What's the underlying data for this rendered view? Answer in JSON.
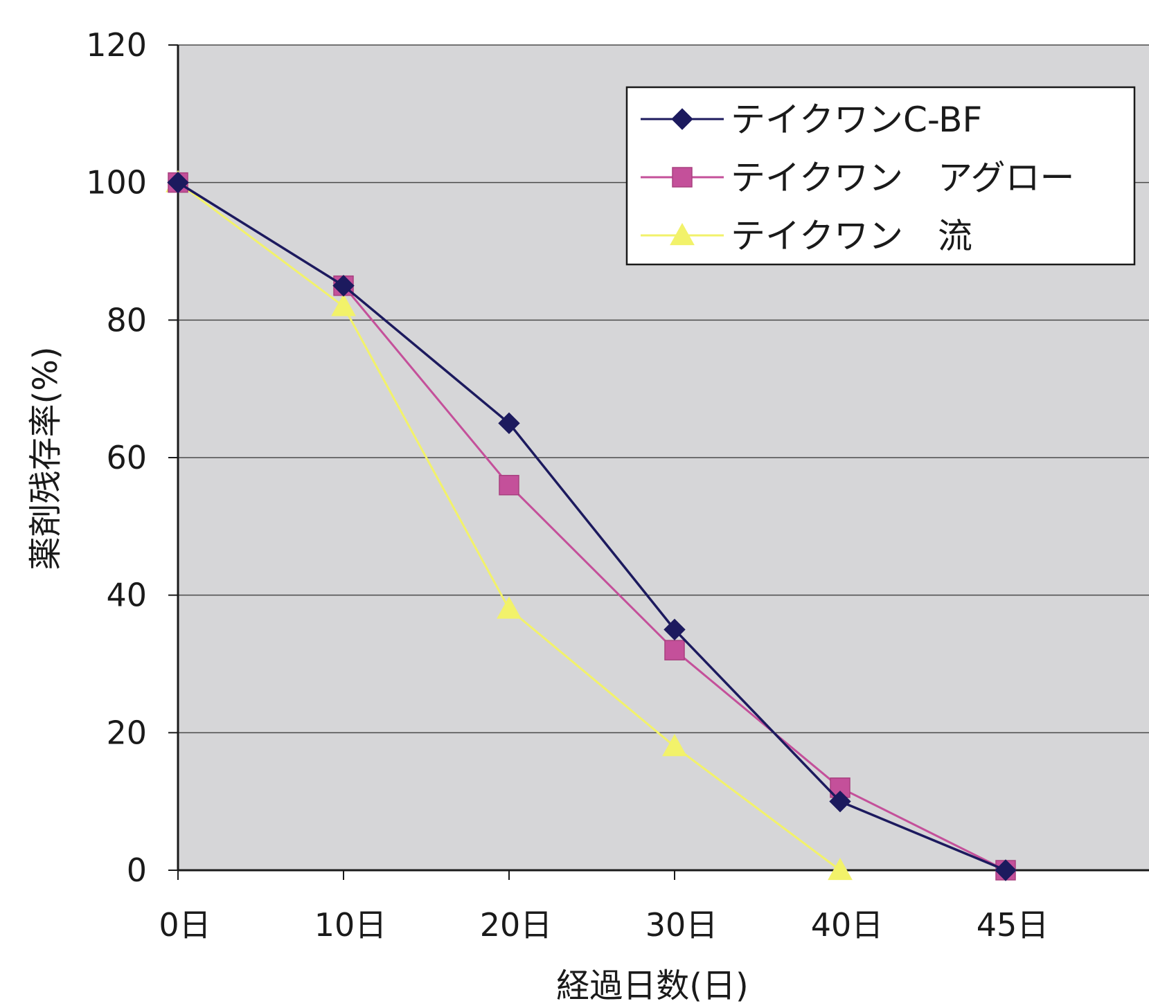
{
  "chart_data": {
    "type": "line",
    "title": "",
    "xlabel": "経過日数(日)",
    "ylabel": "薬剤残存率(%)",
    "categories": [
      "0日",
      "10日",
      "20日",
      "30日",
      "40日",
      "45日"
    ],
    "ylim": [
      0,
      120
    ],
    "yticks": [
      0,
      20,
      40,
      60,
      80,
      100,
      120
    ],
    "grid": true,
    "legend_position": "top-right",
    "series": [
      {
        "name": "テイクワンC-BF",
        "color": "#1c1a5e",
        "marker": "diamond",
        "values": [
          100,
          85,
          65,
          35,
          10,
          0
        ]
      },
      {
        "name": "テイクワン　アグロー",
        "color": "#c4509a",
        "marker": "square",
        "values": [
          100,
          85,
          56,
          32,
          12,
          0
        ]
      },
      {
        "name": "テイクワン　流",
        "color": "#f2f26a",
        "marker": "triangle",
        "values": [
          100,
          82,
          38,
          18,
          0,
          null
        ]
      }
    ]
  }
}
